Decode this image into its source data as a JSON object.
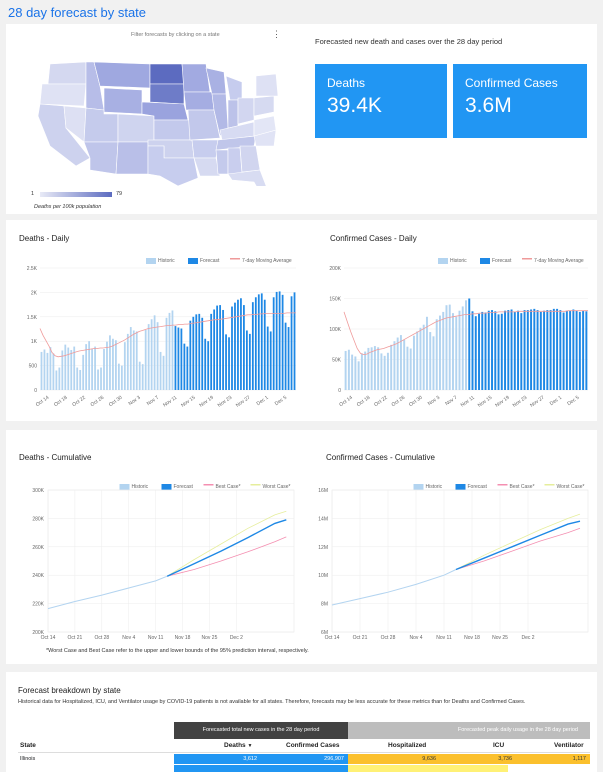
{
  "page": {
    "title": "28 day forecast by state"
  },
  "map": {
    "caption": "Filter forecasts by clicking on a state",
    "legend_min": "1",
    "legend_max": "79",
    "legend_label": "Deaths per 100k population",
    "menu_icon": "kebab-icon"
  },
  "summary": {
    "heading": "Forecasted new death and cases over the 28 day period",
    "deaths_label": "Deaths",
    "deaths_value": "39.4K",
    "cases_label": "Confirmed Cases",
    "cases_value": "3.6M"
  },
  "colors": {
    "accent": "#1a73e8",
    "kpi": "#2196f3",
    "historic": "#b3d4f0",
    "forecast": "#1e88e5",
    "moving_avg": "#ef9a9a",
    "best": "#f48fb1",
    "worst": "#e6ee9c"
  },
  "chart_data": [
    {
      "id": "deaths-daily",
      "type": "bar",
      "title": "Deaths - Daily",
      "legend": [
        "Historic",
        "Forecast",
        "7-day Moving Average"
      ],
      "ylim": [
        0,
        2500
      ],
      "yticks": [
        "0",
        "500",
        "1K",
        "1.5K",
        "2K",
        "2.5K"
      ],
      "xticks": [
        "Oct 14",
        "Oct 18",
        "Oct 22",
        "Oct 26",
        "Oct 30",
        "Nov 3",
        "Nov 7",
        "Nov 11",
        "Nov 15",
        "Nov 19",
        "Nov 23",
        "Nov 27",
        "Dec 1",
        "Dec 5"
      ],
      "historic": [
        780,
        830,
        760,
        880,
        750,
        400,
        460,
        810,
        930,
        870,
        820,
        890,
        460,
        410,
        720,
        940,
        1000,
        850,
        890,
        420,
        460,
        840,
        990,
        1120,
        1050,
        1020,
        540,
        500,
        980,
        1150,
        1290,
        1220,
        1200,
        580,
        530,
        1230,
        1350,
        1450,
        1530,
        1390,
        780,
        700,
        1480,
        1580,
        1630
      ],
      "forecast": [
        1310,
        1280,
        1260,
        950,
        890,
        1420,
        1500,
        1550,
        1560,
        1480,
        1050,
        1000,
        1560,
        1650,
        1730,
        1740,
        1640,
        1140,
        1080,
        1710,
        1790,
        1850,
        1880,
        1740,
        1220,
        1150,
        1800,
        1900,
        1960,
        1980,
        1850,
        1300,
        1200,
        1900,
        2010,
        2020,
        1950,
        1380,
        1290,
        1920,
        2000
      ],
      "moving_avg": [
        1260,
        1120,
        1010,
        900,
        770,
        700,
        680,
        690,
        700,
        720,
        740,
        760,
        780,
        800,
        810,
        820,
        830,
        840,
        850,
        850,
        860,
        860,
        870,
        880,
        900,
        930,
        960,
        990,
        1020,
        1060,
        1100,
        1140,
        1170,
        1200,
        1220,
        1240,
        1260,
        1270,
        1280,
        1290,
        1300,
        1310,
        1320,
        1320,
        1330,
        1330,
        1340,
        1340,
        1350,
        1350,
        1360,
        1370,
        1380,
        1390,
        1400,
        1410,
        1420,
        1430,
        1440,
        1440,
        1450,
        1460,
        1470,
        1480,
        1490,
        1500,
        1510,
        1520,
        1530,
        1540,
        1540,
        1550,
        1550,
        1560,
        1560,
        1570,
        1570,
        1570,
        1570,
        1570,
        1570,
        1570,
        1580,
        1580,
        1580,
        1580
      ]
    },
    {
      "id": "cases-daily",
      "type": "bar",
      "title": "Confirmed Cases - Daily",
      "legend": [
        "Historic",
        "Forecast",
        "7-day Moving Average"
      ],
      "ylim": [
        0,
        200000
      ],
      "yticks": [
        "0",
        "50K",
        "100K",
        "150K",
        "200K"
      ],
      "xticks": [
        "Oct 14",
        "Oct 18",
        "Oct 22",
        "Oct 26",
        "Oct 30",
        "Nov 3",
        "Nov 7",
        "Nov 11",
        "Nov 15",
        "Nov 19",
        "Nov 23",
        "Nov 27",
        "Dec 1",
        "Dec 5"
      ],
      "historic": [
        64000,
        66000,
        58000,
        55000,
        47000,
        60000,
        63000,
        69000,
        70000,
        72000,
        70000,
        60000,
        56000,
        61000,
        74000,
        80000,
        86000,
        90000,
        82000,
        71000,
        68000,
        89000,
        96000,
        102000,
        107000,
        120000,
        95000,
        88000,
        116000,
        122000,
        128000,
        139000,
        140000,
        126000,
        120000,
        130000,
        137000,
        147000
      ],
      "forecast": [
        150000,
        129000,
        121000,
        125000,
        128000,
        127000,
        130000,
        131000,
        129000,
        124000,
        125000,
        130000,
        131000,
        132000,
        128000,
        130000,
        126000,
        131000,
        131000,
        132000,
        133000,
        131000,
        128000,
        130000,
        131000,
        131000,
        133000,
        133000,
        131000,
        127000,
        130000,
        130000,
        132000,
        130000,
        128000,
        130000,
        129000
      ],
      "moving_avg": [
        128000,
        112000,
        96000,
        82000,
        68000,
        60000,
        58000,
        59000,
        62000,
        64000,
        66000,
        67000,
        68000,
        70000,
        72000,
        74000,
        76000,
        79000,
        82000,
        85000,
        88000,
        91000,
        94000,
        97000,
        100000,
        103000,
        106000,
        109000,
        112000,
        114000,
        116000,
        118000,
        119000,
        120000,
        121000,
        122000,
        123000,
        124000,
        124000,
        125000,
        125000,
        126000,
        126000,
        126000,
        127000,
        127000,
        127000,
        128000,
        128000,
        128000,
        128000,
        128000,
        128000,
        129000,
        129000,
        129000,
        129000,
        129000,
        129000,
        129000,
        129000,
        129000,
        129000,
        129000,
        129000,
        129000,
        129000,
        129000,
        130000,
        130000,
        130000,
        130000,
        130000,
        130000,
        130000
      ]
    },
    {
      "id": "deaths-cumulative",
      "type": "line",
      "title": "Deaths - Cumulative",
      "legend": [
        "Historic",
        "Forecast",
        "Best Case*",
        "Worst Case*"
      ],
      "ylim": [
        200000,
        300000
      ],
      "yticks": [
        "200K",
        "220K",
        "240K",
        "260K",
        "280K",
        "300K"
      ],
      "xticks": [
        "Oct 14",
        "Oct 21",
        "Oct 28",
        "Nov 4",
        "Nov 11",
        "Nov 18",
        "Nov 25",
        "Dec 2"
      ],
      "historic": [
        [
          0,
          216500
        ],
        [
          7,
          221500
        ],
        [
          14,
          226000
        ],
        [
          21,
          231000
        ],
        [
          28,
          236000
        ],
        [
          31,
          239300
        ]
      ],
      "forecast": [
        [
          31,
          239300
        ],
        [
          38,
          248000
        ],
        [
          45,
          257000
        ],
        [
          52,
          266500
        ],
        [
          59,
          276500
        ],
        [
          62,
          279000
        ]
      ],
      "best": [
        [
          31,
          239300
        ],
        [
          38,
          244000
        ],
        [
          45,
          250000
        ],
        [
          52,
          256500
        ],
        [
          59,
          263500
        ],
        [
          62,
          267000
        ]
      ],
      "worst": [
        [
          31,
          239300
        ],
        [
          38,
          251000
        ],
        [
          45,
          262000
        ],
        [
          52,
          273000
        ],
        [
          59,
          282500
        ],
        [
          62,
          285000
        ]
      ]
    },
    {
      "id": "cases-cumulative",
      "type": "line",
      "title": "Confirmed Cases - Cumulative",
      "legend": [
        "Historic",
        "Forecast",
        "Best Case*",
        "Worst Case*"
      ],
      "ylim": [
        6000000,
        16000000
      ],
      "yticks": [
        "6M",
        "8M",
        "10M",
        "12M",
        "14M",
        "16M"
      ],
      "xticks": [
        "Oct 14",
        "Oct 21",
        "Oct 28",
        "Nov 4",
        "Nov 11",
        "Nov 18",
        "Nov 25",
        "Dec 2"
      ],
      "historic": [
        [
          0,
          7900000
        ],
        [
          7,
          8350000
        ],
        [
          14,
          8800000
        ],
        [
          21,
          9350000
        ],
        [
          28,
          10000000
        ],
        [
          31,
          10400000
        ]
      ],
      "forecast": [
        [
          31,
          10400000
        ],
        [
          38,
          11200000
        ],
        [
          45,
          12000000
        ],
        [
          52,
          12800000
        ],
        [
          59,
          13600000
        ],
        [
          62,
          13800000
        ]
      ],
      "best": [
        [
          31,
          10400000
        ],
        [
          38,
          11000000
        ],
        [
          45,
          11700000
        ],
        [
          52,
          12400000
        ],
        [
          59,
          13000000
        ],
        [
          62,
          13300000
        ]
      ],
      "worst": [
        [
          31,
          10400000
        ],
        [
          38,
          11400000
        ],
        [
          45,
          12300000
        ],
        [
          52,
          13200000
        ],
        [
          59,
          14000000
        ],
        [
          62,
          14300000
        ]
      ]
    }
  ],
  "footnote": "*Worst Case and Best Case refer to the upper and lower bounds of the 95% prediction interval, respectively.",
  "table": {
    "title": "Forecast breakdown by state",
    "note": "Historical data for Hospitalized, ICU, and Ventilator usage by COVID-19 patients is not available for all states. Therefore, forecasts may be less accurate for these metrics than for Deaths and Confirmed Cases.",
    "group_a": "Forecasted total new cases in the 28 day period",
    "group_b": "Forecasted peak daily usage in the 28 day period",
    "headers": {
      "state": "State",
      "deaths": "Deaths",
      "sort_icon": "sort-desc-icon",
      "cases": "Confirmed Cases",
      "hospitalized": "Hospitalized",
      "icu": "ICU",
      "ventilator": "Ventilator"
    },
    "rows": [
      {
        "state": "Illinois",
        "deaths": "3,612",
        "cases": "296,907",
        "hospitalized": "9,636",
        "icu": "3,736",
        "ventilator": "1,117",
        "deaths_share": 1.0,
        "cases_share": 1.0,
        "hosp_share": 1.0,
        "icu_share": 1.0,
        "vent_share": 1.0
      }
    ]
  }
}
